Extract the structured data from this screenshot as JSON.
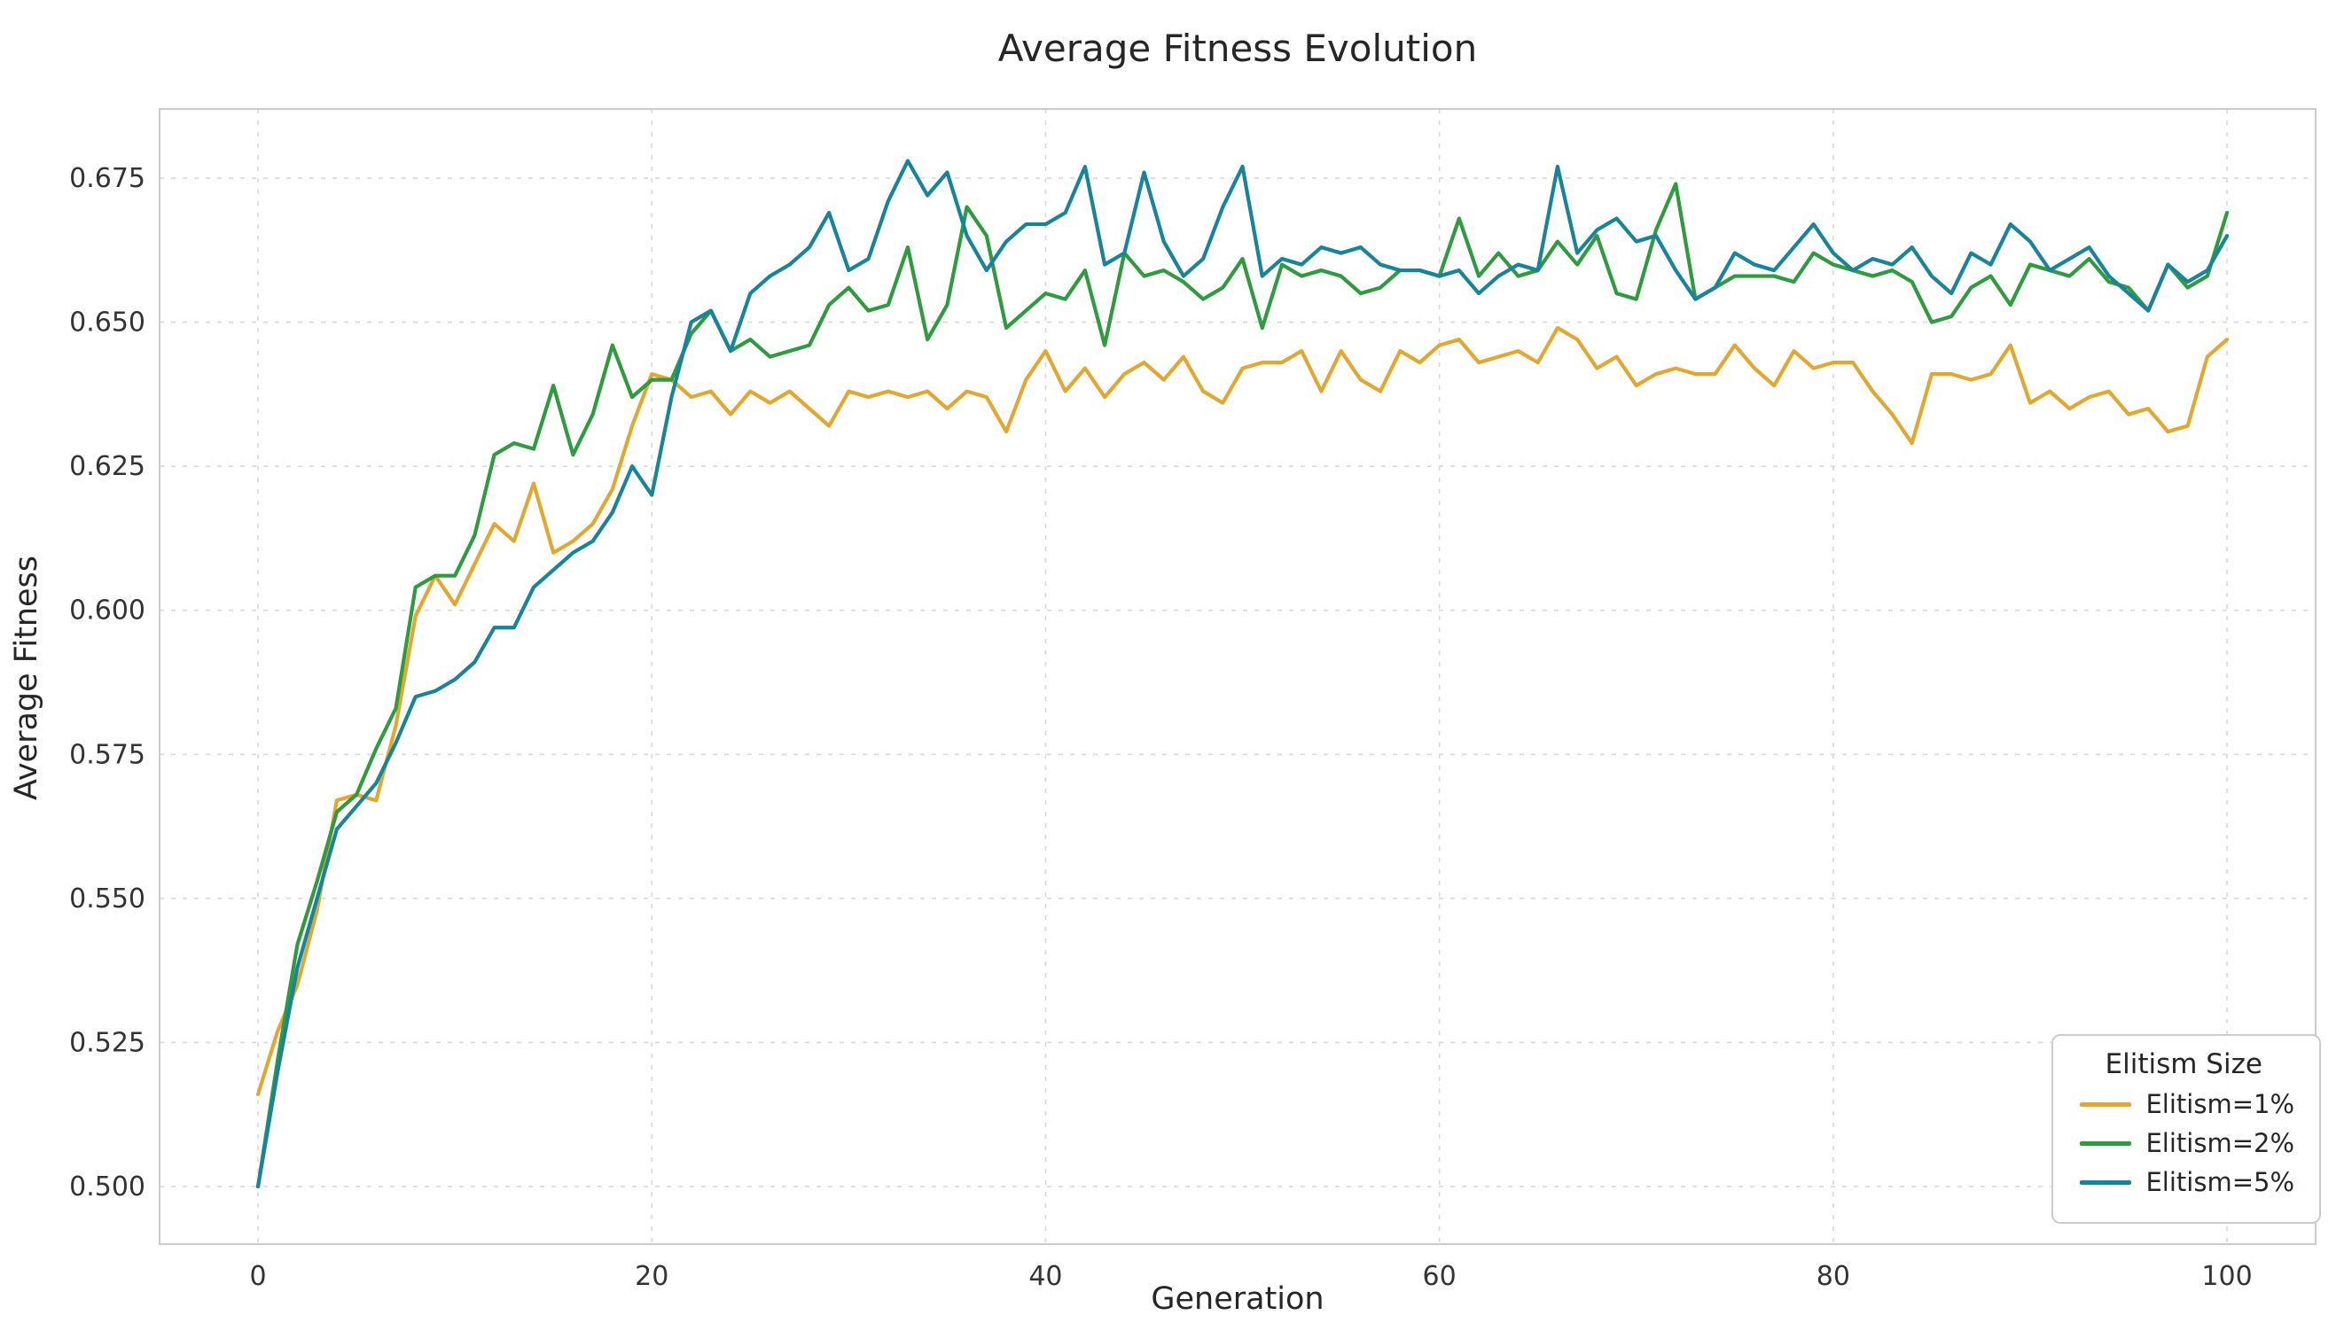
{
  "chart_data": {
    "type": "line",
    "title": "Average Fitness Evolution",
    "xlabel": "Generation",
    "ylabel": "Average Fitness",
    "xlim": [
      -5,
      104.5
    ],
    "ylim": [
      0.49,
      0.687
    ],
    "x_ticks": [
      0,
      20,
      40,
      60,
      80,
      100
    ],
    "y_ticks": [
      0.5,
      0.525,
      0.55,
      0.575,
      0.6,
      0.625,
      0.65,
      0.675
    ],
    "y_tick_labels": [
      "0.500",
      "0.525",
      "0.550",
      "0.575",
      "0.600",
      "0.625",
      "0.650",
      "0.675"
    ],
    "grid": true,
    "grid_style": "dashed",
    "legend": {
      "title": "Elitism Size",
      "position": "lower right"
    },
    "x": [
      0,
      1,
      2,
      3,
      4,
      5,
      6,
      7,
      8,
      9,
      10,
      11,
      12,
      13,
      14,
      15,
      16,
      17,
      18,
      19,
      20,
      21,
      22,
      23,
      24,
      25,
      26,
      27,
      28,
      29,
      30,
      31,
      32,
      33,
      34,
      35,
      36,
      37,
      38,
      39,
      40,
      41,
      42,
      43,
      44,
      45,
      46,
      47,
      48,
      49,
      50,
      51,
      52,
      53,
      54,
      55,
      56,
      57,
      58,
      59,
      60,
      61,
      62,
      63,
      64,
      65,
      66,
      67,
      68,
      69,
      70,
      71,
      72,
      73,
      74,
      75,
      76,
      77,
      78,
      79,
      80,
      81,
      82,
      83,
      84,
      85,
      86,
      87,
      88,
      89,
      90,
      91,
      92,
      93,
      94,
      95,
      96,
      97,
      98,
      99,
      100
    ],
    "series": [
      {
        "name": "Elitism=1%",
        "color": "#E2A72E",
        "values": [
          0.516,
          0.527,
          0.535,
          0.548,
          0.567,
          0.568,
          0.567,
          0.58,
          0.599,
          0.606,
          0.601,
          0.608,
          0.615,
          0.612,
          0.622,
          0.61,
          0.612,
          0.615,
          0.621,
          0.632,
          0.641,
          0.64,
          0.637,
          0.638,
          0.634,
          0.638,
          0.636,
          0.638,
          0.635,
          0.632,
          0.638,
          0.637,
          0.638,
          0.637,
          0.638,
          0.635,
          0.638,
          0.637,
          0.631,
          0.64,
          0.645,
          0.638,
          0.642,
          0.637,
          0.641,
          0.643,
          0.64,
          0.644,
          0.638,
          0.636,
          0.642,
          0.643,
          0.643,
          0.645,
          0.638,
          0.645,
          0.64,
          0.638,
          0.645,
          0.643,
          0.646,
          0.647,
          0.643,
          0.644,
          0.645,
          0.643,
          0.649,
          0.647,
          0.642,
          0.644,
          0.639,
          0.641,
          0.642,
          0.641,
          0.641,
          0.646,
          0.642,
          0.639,
          0.645,
          0.642,
          0.643,
          0.643,
          0.638,
          0.634,
          0.629,
          0.641,
          0.641,
          0.64,
          0.641,
          0.646,
          0.636,
          0.638,
          0.635,
          0.637,
          0.638,
          0.634,
          0.635,
          0.631,
          0.632,
          0.644,
          0.647
        ]
      },
      {
        "name": "Elitism=2%",
        "color": "#2E9B3F",
        "values": [
          0.5,
          0.522,
          0.542,
          0.553,
          0.565,
          0.568,
          0.576,
          0.583,
          0.604,
          0.606,
          0.606,
          0.613,
          0.627,
          0.629,
          0.628,
          0.639,
          0.627,
          0.634,
          0.646,
          0.637,
          0.64,
          0.64,
          0.648,
          0.652,
          0.645,
          0.647,
          0.644,
          0.645,
          0.646,
          0.653,
          0.656,
          0.652,
          0.653,
          0.663,
          0.647,
          0.653,
          0.67,
          0.665,
          0.649,
          0.652,
          0.655,
          0.654,
          0.659,
          0.646,
          0.662,
          0.658,
          0.659,
          0.657,
          0.654,
          0.656,
          0.661,
          0.649,
          0.66,
          0.658,
          0.659,
          0.658,
          0.655,
          0.656,
          0.659,
          0.659,
          0.658,
          0.668,
          0.658,
          0.662,
          0.658,
          0.659,
          0.664,
          0.66,
          0.665,
          0.655,
          0.654,
          0.666,
          0.674,
          0.654,
          0.656,
          0.658,
          0.658,
          0.658,
          0.657,
          0.662,
          0.66,
          0.659,
          0.658,
          0.659,
          0.657,
          0.65,
          0.651,
          0.656,
          0.658,
          0.653,
          0.66,
          0.659,
          0.658,
          0.661,
          0.657,
          0.656,
          0.652,
          0.66,
          0.656,
          0.658,
          0.669
        ]
      },
      {
        "name": "Elitism=5%",
        "color": "#16849B",
        "values": [
          0.5,
          0.52,
          0.538,
          0.55,
          0.562,
          0.566,
          0.57,
          0.577,
          0.585,
          0.586,
          0.588,
          0.591,
          0.597,
          0.597,
          0.604,
          0.607,
          0.61,
          0.612,
          0.617,
          0.625,
          0.62,
          0.637,
          0.65,
          0.652,
          0.645,
          0.655,
          0.658,
          0.66,
          0.663,
          0.669,
          0.659,
          0.661,
          0.671,
          0.678,
          0.672,
          0.676,
          0.665,
          0.659,
          0.664,
          0.667,
          0.667,
          0.669,
          0.677,
          0.66,
          0.662,
          0.676,
          0.664,
          0.658,
          0.661,
          0.67,
          0.677,
          0.658,
          0.661,
          0.66,
          0.663,
          0.662,
          0.663,
          0.66,
          0.659,
          0.659,
          0.658,
          0.659,
          0.655,
          0.658,
          0.66,
          0.659,
          0.677,
          0.662,
          0.666,
          0.668,
          0.664,
          0.665,
          0.659,
          0.654,
          0.656,
          0.662,
          0.66,
          0.659,
          0.663,
          0.667,
          0.662,
          0.659,
          0.661,
          0.66,
          0.663,
          0.658,
          0.655,
          0.662,
          0.66,
          0.667,
          0.664,
          0.659,
          0.661,
          0.663,
          0.658,
          0.655,
          0.652,
          0.66,
          0.657,
          0.659,
          0.665
        ]
      }
    ]
  }
}
